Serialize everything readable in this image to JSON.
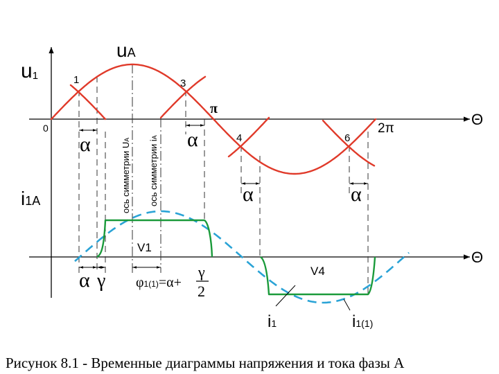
{
  "labels": {
    "u1_main": "u",
    "u1_sub": "1",
    "uA_main": "u",
    "uA_sub": "A",
    "i1A_main": "i",
    "i1A_sub": "1A",
    "zero": "0",
    "pi": "π",
    "two_pi": "2π",
    "theta_top": "Θ",
    "theta_bottom": "Θ",
    "pt1": "1",
    "pt3": "3",
    "pt4": "4",
    "pt6": "6",
    "alpha": "α",
    "gamma": "γ",
    "v1": "V1",
    "v4": "V4",
    "axis_sym_u": "ось симметрии U",
    "axis_sym_u_sub": "A",
    "axis_sym_i": "ось симметрии i",
    "axis_sym_i_sub": "A",
    "phi": "φ",
    "phi_sub": "1(1)",
    "phi_rhs": "=α+",
    "frac_num": "γ",
    "frac_den": "2",
    "i1_main": "i",
    "i1_sub": "1",
    "i11_main": "i",
    "i11_sub": "1(1)"
  },
  "caption": "Рисунок 8.1 - Временные диаграммы напряжения и тока фазы А",
  "colors": {
    "voltage": "#e03a2a",
    "current": "#1a9a3a",
    "fundamental": "#2aa3d6",
    "axis": "#000000",
    "guide": "#333333"
  }
}
